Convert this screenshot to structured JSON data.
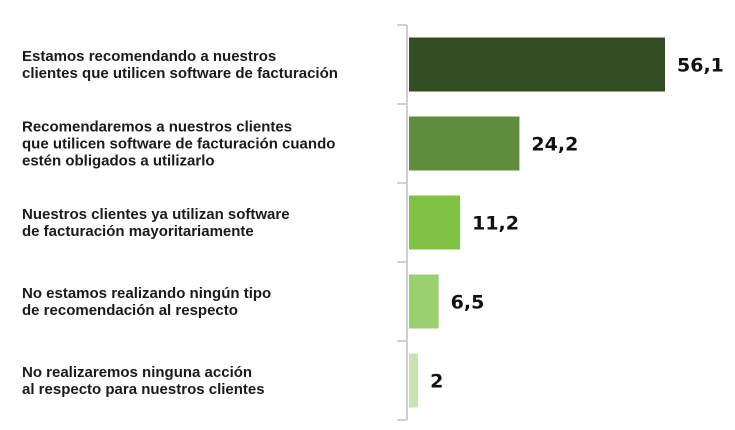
{
  "chart_data": {
    "type": "bar",
    "orientation": "horizontal",
    "title": "",
    "xlabel": "",
    "ylabel": "",
    "categories": [
      "Estamos recomendando a nuestros clientes que utilicen software de facturación",
      "Recomendaremos a nuestros clientes que utilicen software de facturación cuando estén obligados a utilizarlo",
      "Nuestros clientes ya utilizan software de facturación mayoritariamente",
      "No estamos realizando ningún tipo de recomendación al respecto",
      "No realizaremos ninguna acción al respecto para nuestros clientes"
    ],
    "category_lines": [
      [
        "Estamos recomendando a nuestros",
        "clientes que utilicen software de facturación"
      ],
      [
        "Recomendaremos a nuestros clientes",
        "que utilicen software de facturación cuando",
        "estén obligados a utilizarlo"
      ],
      [
        "Nuestros clientes ya utilizan software",
        "de facturación mayoritariamente"
      ],
      [
        "No estamos realizando ningún tipo",
        "de recomendación al respecto"
      ],
      [
        "No realizaremos ninguna acción",
        "al respecto para nuestros clientes"
      ]
    ],
    "values": [
      56.1,
      24.2,
      11.2,
      6.5,
      2
    ],
    "value_labels": [
      "56,1",
      "24,2",
      "11,2",
      "6,5",
      "2"
    ],
    "colors": [
      "#344e23",
      "#5f8d3d",
      "#80c045",
      "#9ccf70",
      "#c8e2b3"
    ],
    "xlim": [
      0,
      60
    ],
    "grid": false,
    "legend": "none"
  }
}
